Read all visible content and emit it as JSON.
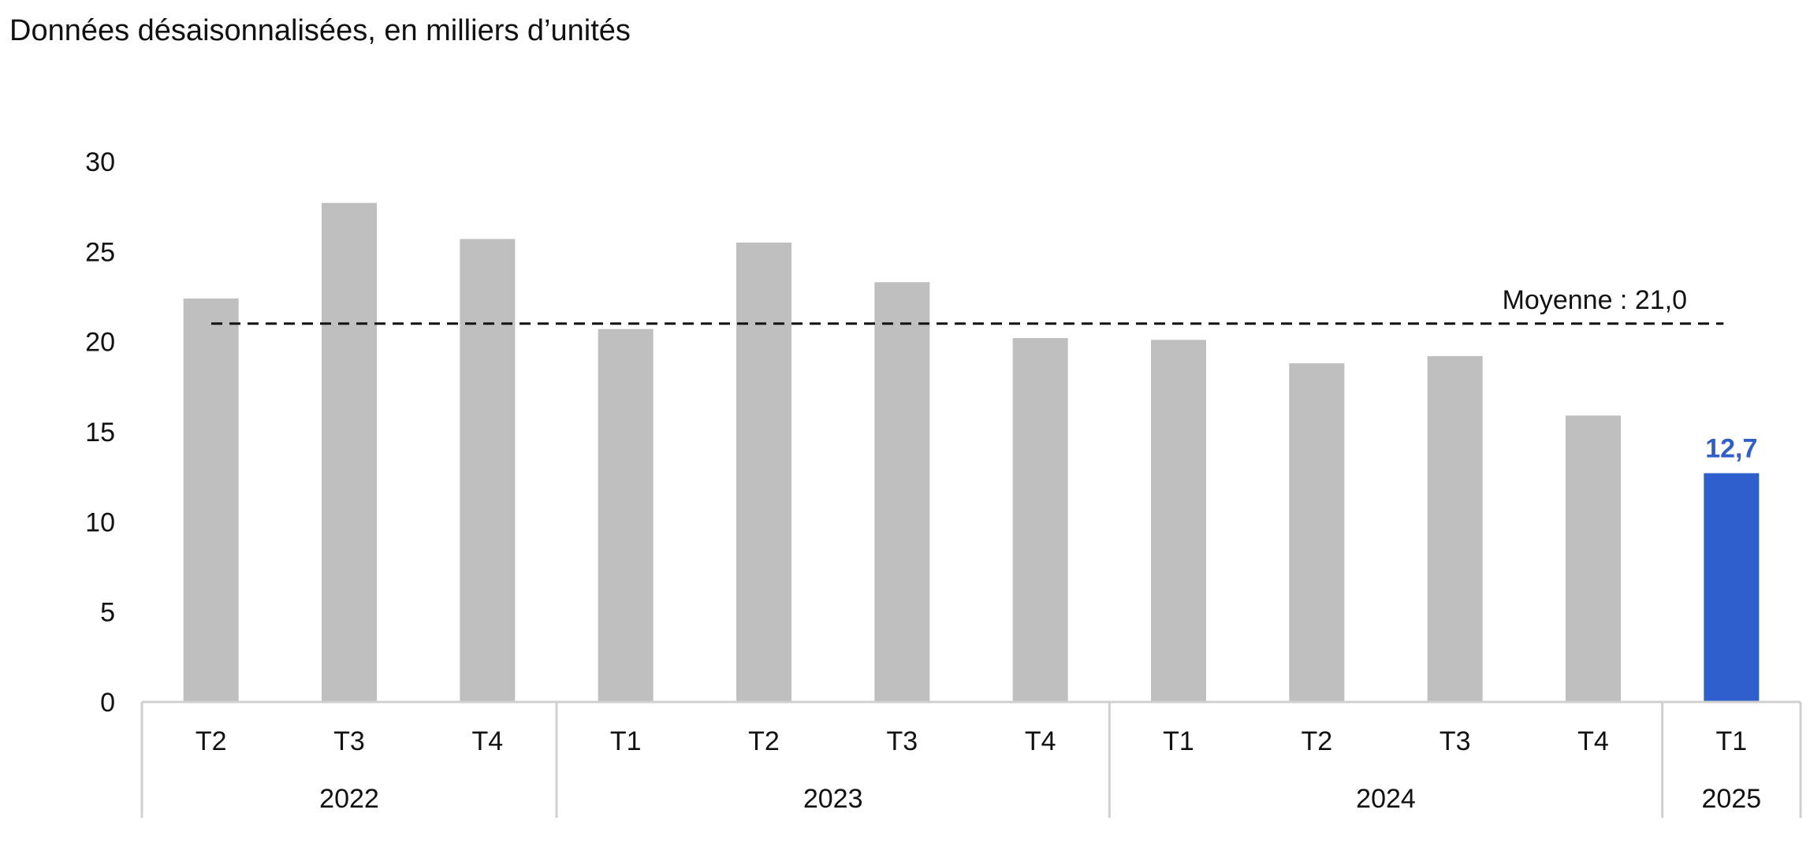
{
  "subtitle": "Données désaisonnalisées, en milliers d’unités",
  "chart_data": {
    "type": "bar",
    "title": "",
    "subtitle": "Données désaisonnalisées, en milliers d’unités",
    "xlabel": "",
    "ylabel": "",
    "ylim": [
      0,
      30
    ],
    "yticks": [
      "0",
      "5",
      "10",
      "15",
      "20",
      "25",
      "30"
    ],
    "categories": [
      "T2",
      "T3",
      "T4",
      "T1",
      "T2",
      "T3",
      "T4",
      "T1",
      "T2",
      "T3",
      "T4",
      "T1"
    ],
    "groups": [
      {
        "label": "2022",
        "count": 3
      },
      {
        "label": "2023",
        "count": 4
      },
      {
        "label": "2024",
        "count": 4
      },
      {
        "label": "2025",
        "count": 1
      }
    ],
    "values": [
      22.4,
      27.7,
      25.7,
      20.7,
      25.5,
      23.3,
      20.2,
      20.1,
      18.8,
      19.2,
      15.9,
      12.7
    ],
    "colors": {
      "default": "#bfbfbf",
      "highlight": "#2f5fcc"
    },
    "highlight_index": 11,
    "data_labels": [
      {
        "index": 11,
        "text": "12,7"
      }
    ],
    "average": {
      "value": 21.0,
      "label": "Moyenne : 21,0"
    },
    "grid": false
  }
}
